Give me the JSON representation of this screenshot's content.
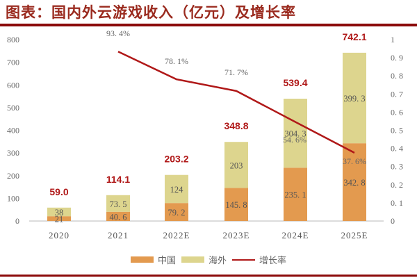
{
  "header": {
    "title": "图表：国内外云游戏收入（亿元）及增长率"
  },
  "legend": {
    "items": [
      {
        "label": "中国",
        "color": "#e39a4f",
        "type": "bar"
      },
      {
        "label": "海外",
        "color": "#ddd58e",
        "type": "bar"
      },
      {
        "label": "增长率",
        "color": "#b01818",
        "type": "line"
      }
    ]
  },
  "colors": {
    "china": "#e39a4f",
    "overseas": "#ddd58e",
    "growth": "#b01818",
    "total_label": "#b01818",
    "rule": "#8b0a0a"
  },
  "chart_data": {
    "type": "bar",
    "subtype": "stacked bar + line (dual axis)",
    "title": "图表：国内外云游戏收入（亿元）及增长率",
    "categories": [
      "2020",
      "2021",
      "2022E",
      "2023E",
      "2024E",
      "2025E"
    ],
    "series": [
      {
        "name": "中国",
        "type": "bar",
        "axis": "left",
        "values": [
          21,
          40.6,
          79.2,
          145.8,
          235.1,
          342.8
        ],
        "labels": [
          "21",
          "40. 6",
          "79. 2",
          "145. 8",
          "235. 1",
          "342. 8"
        ]
      },
      {
        "name": "海外",
        "type": "bar",
        "axis": "left",
        "values": [
          38,
          73.5,
          124,
          203,
          304.3,
          399.3
        ],
        "labels": [
          "38",
          "73. 5",
          "124",
          "203",
          "304. 3",
          "399. 3"
        ]
      },
      {
        "name": "增长率",
        "type": "line",
        "axis": "right",
        "values": [
          null,
          0.934,
          0.781,
          0.717,
          0.546,
          0.376
        ],
        "labels": [
          "",
          "93. 4%",
          "78. 1%",
          "71. 7%",
          "54. 6%",
          "37. 6%"
        ]
      }
    ],
    "totals": [
      "59.0",
      "114.1",
      "203.2",
      "348.8",
      "539.4",
      "742.1"
    ],
    "left_axis": {
      "ticks": [
        "0",
        "100",
        "200",
        "300",
        "400",
        "500",
        "600",
        "700",
        "800"
      ],
      "ylim": [
        0,
        800
      ]
    },
    "right_axis": {
      "ticks": [
        "0",
        "0. 1",
        "0. 2",
        "0. 3",
        "0. 4",
        "0. 5",
        "0. 6",
        "0. 7",
        "0. 8",
        "0. 9",
        "1"
      ],
      "ylim": [
        0,
        1
      ]
    },
    "xlabel": "",
    "ylabel": "",
    "grid": false,
    "legend_position": "bottom"
  }
}
